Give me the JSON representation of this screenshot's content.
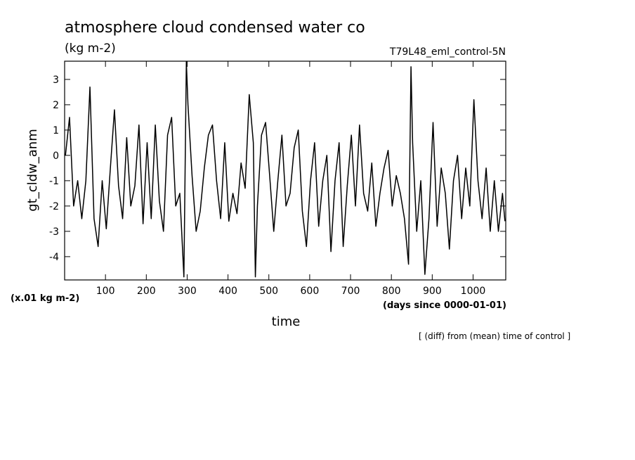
{
  "chart_data": {
    "type": "line",
    "title": "atmosphere cloud condensed water co",
    "subtitle": "(kg m-2)",
    "run_label": "T79L48_eml_control-5N",
    "y_label": "gt_cldw_anm",
    "y_unit": "(x.01 kg m-2)",
    "x_label": "time",
    "x_unit": "(days since 0000-01-01)",
    "note": "[ (diff) from (mean) time of control ]",
    "xlim": [
      0,
      1080
    ],
    "ylim": [
      -4.92,
      3.72
    ],
    "xticks": [
      100,
      200,
      300,
      400,
      500,
      600,
      700,
      800,
      900,
      1000
    ],
    "yticks": [
      -4,
      -3,
      -2,
      -1,
      0,
      1,
      2,
      3
    ],
    "x": [
      2,
      12,
      22,
      32,
      42,
      52,
      62,
      72,
      82,
      92,
      102,
      112,
      122,
      132,
      142,
      152,
      162,
      172,
      182,
      192,
      202,
      212,
      222,
      232,
      242,
      252,
      262,
      272,
      282,
      292,
      298,
      302,
      312,
      322,
      332,
      342,
      352,
      362,
      372,
      382,
      392,
      402,
      412,
      422,
      432,
      442,
      452,
      462,
      467,
      472,
      482,
      492,
      502,
      512,
      522,
      532,
      542,
      552,
      562,
      572,
      582,
      592,
      602,
      612,
      622,
      632,
      642,
      652,
      662,
      672,
      682,
      692,
      702,
      712,
      722,
      732,
      742,
      752,
      762,
      772,
      782,
      792,
      802,
      812,
      822,
      832,
      842,
      848,
      852,
      862,
      872,
      882,
      892,
      902,
      912,
      922,
      932,
      942,
      952,
      962,
      972,
      982,
      992,
      1002,
      1012,
      1022,
      1032,
      1042,
      1052,
      1062,
      1072,
      1078
    ],
    "series": [
      {
        "color": "#000000",
        "values": [
          0,
          1.5,
          -2.0,
          -1.0,
          -2.5,
          -1.0,
          2.7,
          -2.5,
          -3.6,
          -1.0,
          -2.9,
          -0.5,
          1.8,
          -1.2,
          -2.5,
          0.7,
          -2.0,
          -1.2,
          1.2,
          -2.7,
          0.5,
          -2.5,
          1.2,
          -1.8,
          -3.0,
          0.8,
          1.5,
          -2.0,
          -1.5,
          -4.8,
          3.7,
          2.0,
          -0.8,
          -3.0,
          -2.2,
          -0.5,
          0.8,
          1.2,
          -1.0,
          -2.5,
          0.5,
          -2.6,
          -1.5,
          -2.3,
          -0.3,
          -1.3,
          2.4,
          0.5,
          -4.8,
          -2.0,
          0.8,
          1.3,
          -0.8,
          -3.0,
          -1.0,
          0.8,
          -2.0,
          -1.5,
          0.3,
          1.0,
          -2.2,
          -3.6,
          -1.0,
          0.5,
          -2.8,
          -1.0,
          0.0,
          -3.8,
          -1.0,
          0.5,
          -3.6,
          -1.2,
          0.8,
          -2.0,
          1.2,
          -1.5,
          -2.2,
          -0.3,
          -2.8,
          -1.5,
          -0.5,
          0.2,
          -2.0,
          -0.8,
          -1.5,
          -2.5,
          -4.3,
          3.5,
          0.5,
          -3.0,
          -1.0,
          -4.7,
          -2.5,
          1.3,
          -2.8,
          -0.5,
          -1.5,
          -3.7,
          -1.0,
          0.0,
          -2.5,
          -0.5,
          -2.0,
          2.2,
          -1.0,
          -2.5,
          -0.5,
          -3.0,
          -1.0,
          -3.0,
          -1.5,
          -2.6
        ]
      }
    ]
  }
}
